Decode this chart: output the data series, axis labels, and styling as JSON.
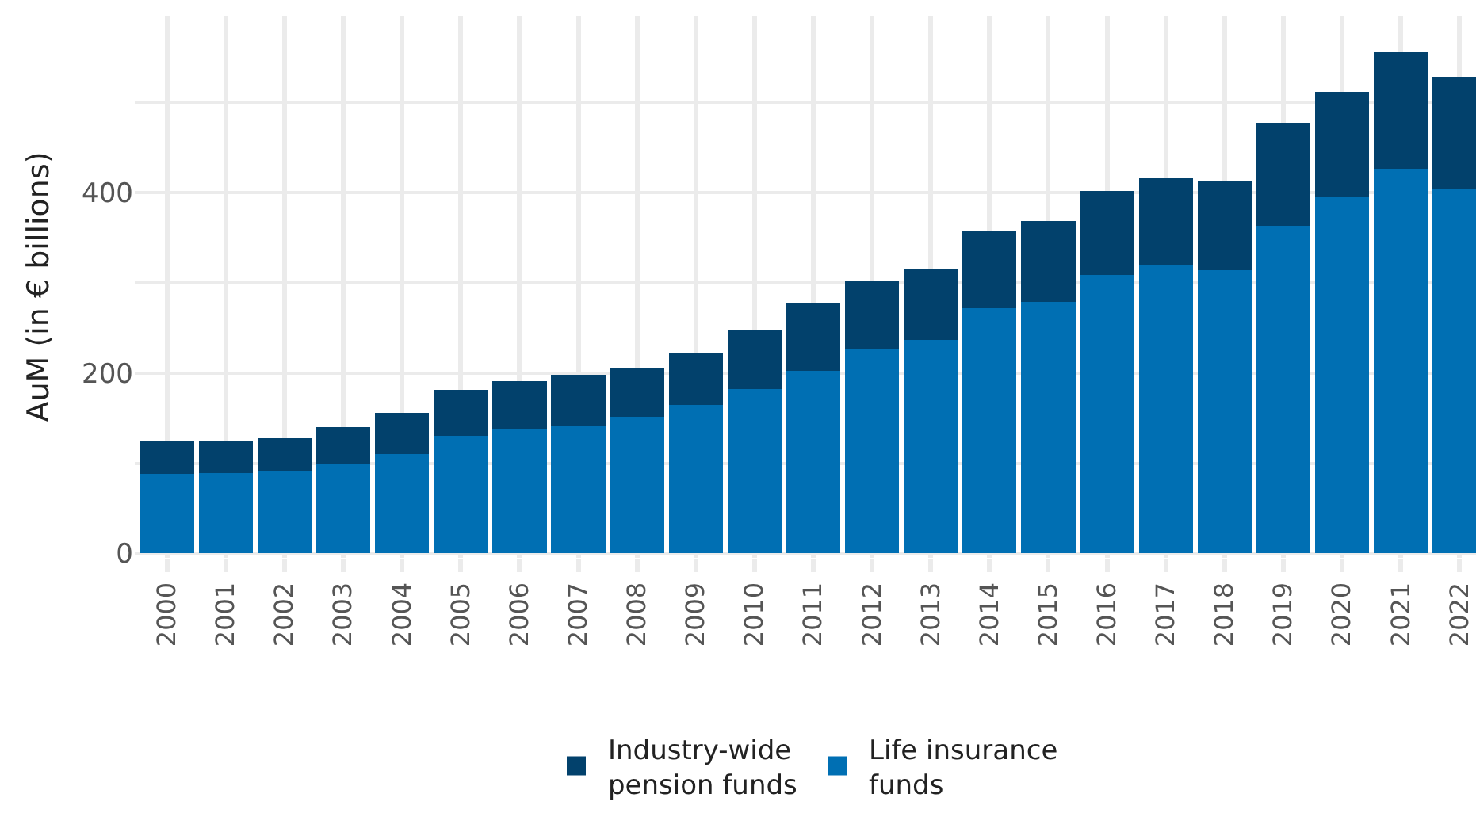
{
  "chart_data": {
    "type": "bar",
    "stacked": true,
    "ylabel": "AuM (in € billions)",
    "categories": [
      "2000",
      "2001",
      "2002",
      "2003",
      "2004",
      "2005",
      "2006",
      "2007",
      "2008",
      "2009",
      "2010",
      "2011",
      "2012",
      "2013",
      "2014",
      "2015",
      "2016",
      "2017",
      "2018",
      "2019",
      "2020",
      "2021",
      "2022"
    ],
    "series": [
      {
        "name": "Life insurance funds",
        "color": "#006fb3",
        "values": [
          88,
          89,
          91,
          100,
          110,
          130,
          137,
          142,
          151,
          165,
          182,
          202,
          226,
          237,
          272,
          279,
          309,
          319,
          314,
          363,
          396,
          426,
          404
        ]
      },
      {
        "name": "Industry-wide pension funds",
        "color": "#02416c",
        "values": [
          37,
          36,
          37,
          40,
          46,
          51,
          54,
          56,
          54,
          58,
          65,
          75,
          76,
          79,
          86,
          89,
          93,
          97,
          98,
          114,
          116,
          130,
          124
        ]
      }
    ],
    "ylim": [
      -5,
      596
    ],
    "yticks": [
      0,
      {
        "value": 100,
        "label": null
      },
      200,
      {
        "value": 300,
        "label": null
      },
      400,
      {
        "value": 500,
        "label": null
      }
    ],
    "grid": true,
    "legend": "bottom"
  }
}
